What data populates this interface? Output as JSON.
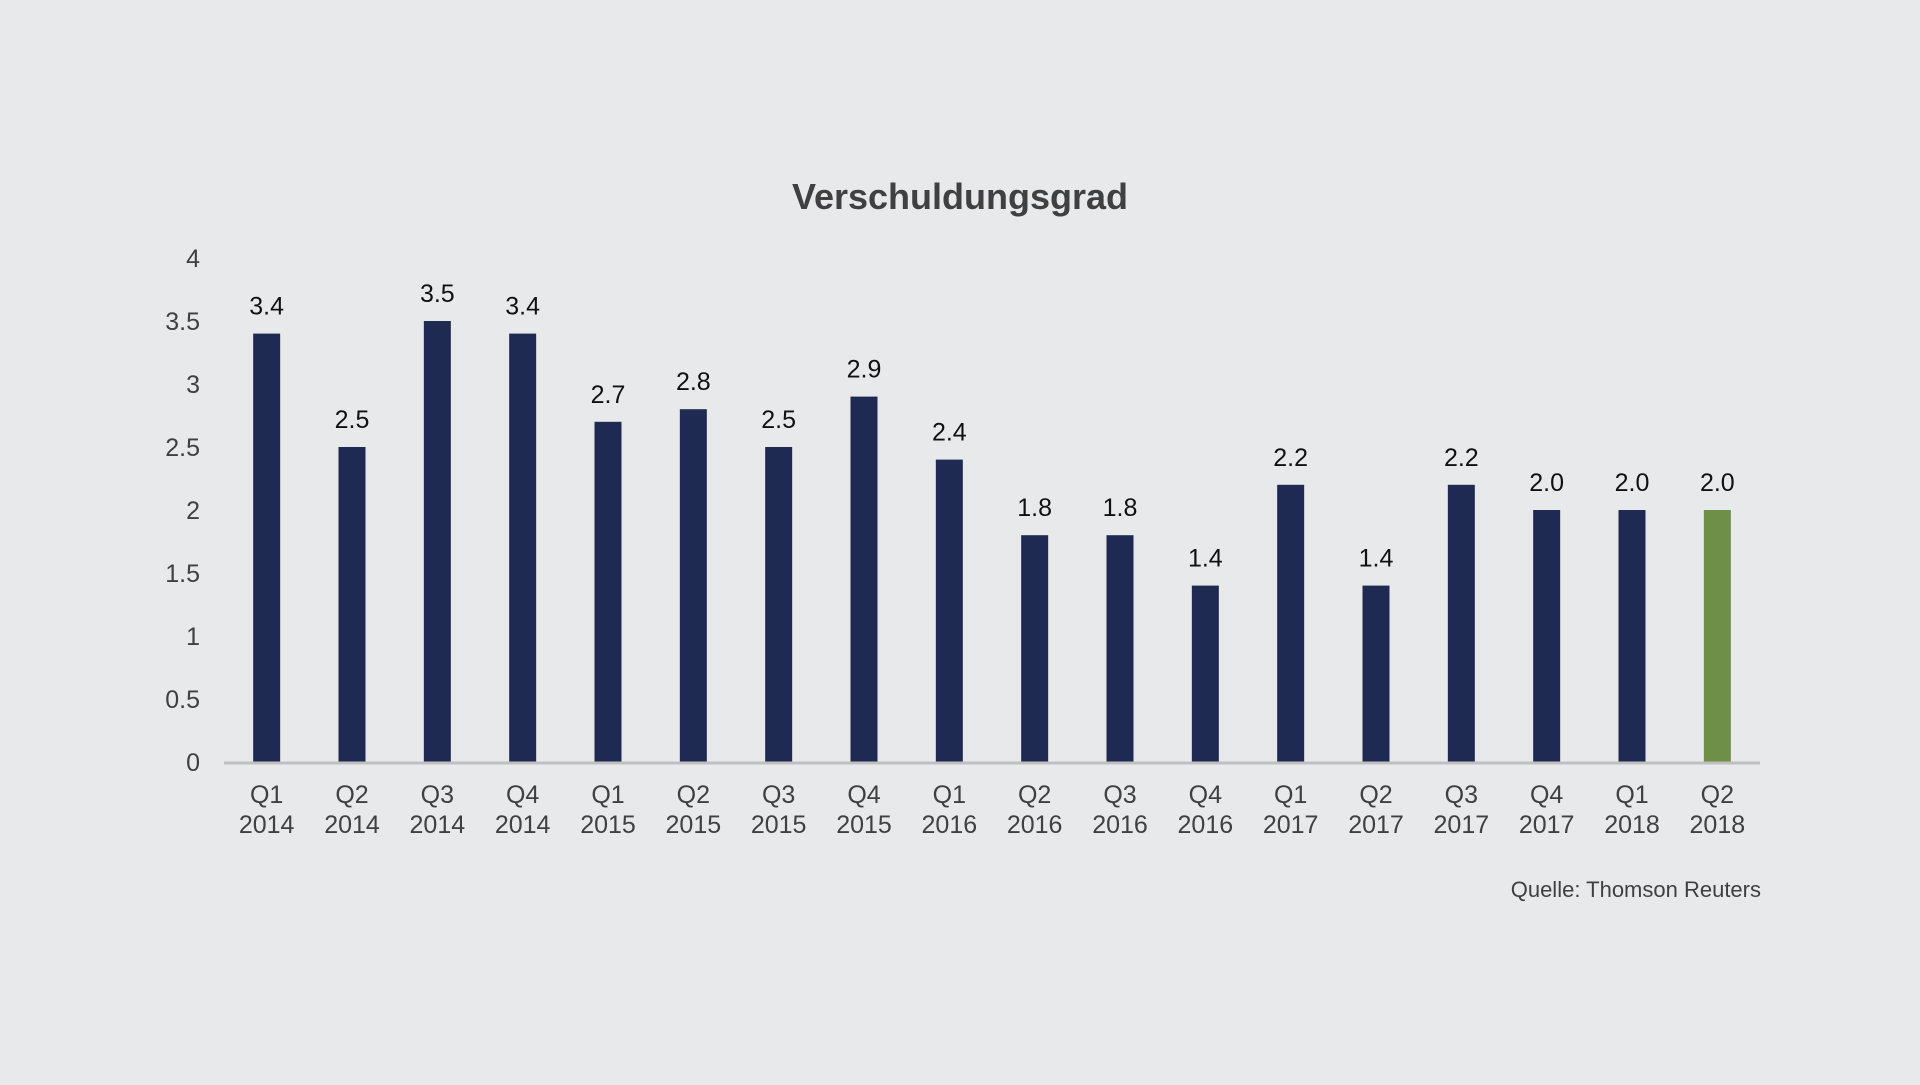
{
  "chart_data": {
    "type": "bar",
    "title": "Verschuldungsgrad",
    "xlabel": "",
    "ylabel": "",
    "ylim": [
      0,
      4
    ],
    "yticks": [
      "0",
      "0.5",
      "1",
      "1.5",
      "2",
      "2.5",
      "3",
      "3.5",
      "4"
    ],
    "grid": false,
    "legend": "none",
    "categories": [
      [
        "Q1",
        "2014"
      ],
      [
        "Q2",
        "2014"
      ],
      [
        "Q3",
        "2014"
      ],
      [
        "Q4",
        "2014"
      ],
      [
        "Q1",
        "2015"
      ],
      [
        "Q2",
        "2015"
      ],
      [
        "Q3",
        "2015"
      ],
      [
        "Q4",
        "2015"
      ],
      [
        "Q1",
        "2016"
      ],
      [
        "Q2",
        "2016"
      ],
      [
        "Q3",
        "2016"
      ],
      [
        "Q4",
        "2016"
      ],
      [
        "Q1",
        "2017"
      ],
      [
        "Q2",
        "2017"
      ],
      [
        "Q3",
        "2017"
      ],
      [
        "Q4",
        "2017"
      ],
      [
        "Q1",
        "2018"
      ],
      [
        "Q2",
        "2018"
      ]
    ],
    "values": [
      3.4,
      2.5,
      3.5,
      3.4,
      2.7,
      2.8,
      2.5,
      2.9,
      2.4,
      1.8,
      1.8,
      1.4,
      2.2,
      1.4,
      2.2,
      2.0,
      2.0,
      2.0
    ],
    "value_labels": [
      "3.4",
      "2.5",
      "3.5",
      "3.4",
      "2.7",
      "2.8",
      "2.5",
      "2.9",
      "2.4",
      "1.8",
      "1.8",
      "1.4",
      "2.2",
      "1.4",
      "2.2",
      "2.0",
      "2.0",
      "2.0"
    ],
    "highlight_index": 17,
    "colors": {
      "bar": "#1f2a52",
      "highlight": "#6e8f47",
      "axis": "#bfbfbf",
      "background": "#e8e9eb"
    },
    "source": "Quelle: Thomson Reuters"
  }
}
